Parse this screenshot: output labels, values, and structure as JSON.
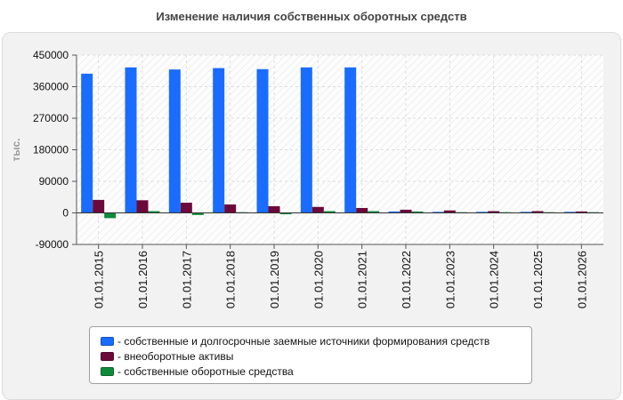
{
  "chart_data": {
    "type": "bar",
    "title": "Изменение наличия собственных оборотных средств",
    "ylabel": "тыс.",
    "xlabel": "",
    "ylim": [
      -90000,
      450000
    ],
    "yticks": [
      -90000,
      0,
      90000,
      180000,
      270000,
      360000,
      450000
    ],
    "grid": true,
    "legend_position": "bottom",
    "categories": [
      "01.01.2015",
      "01.01.2016",
      "01.01.2017",
      "01.01.2018",
      "01.01.2019",
      "01.01.2020",
      "01.01.2021",
      "01.01.2022",
      "01.01.2023",
      "01.01.2024",
      "01.01.2025",
      "01.01.2026"
    ],
    "series": [
      {
        "name": "- собственные и долгосрочные заемные источники формирования средств",
        "color": "#1a6cff",
        "values": [
          397000,
          415000,
          409000,
          413000,
          410000,
          415000,
          415000,
          4000,
          3000,
          3000,
          3000,
          3000
        ]
      },
      {
        "name": "- внеоборотные активы",
        "color": "#6b0a3a",
        "values": [
          37000,
          36000,
          29000,
          24000,
          19000,
          17000,
          14000,
          9000,
          7000,
          5000,
          5000,
          4000
        ]
      },
      {
        "name": "- собственные оборотные средства",
        "color": "#0e8a3a",
        "values": [
          -15000,
          5000,
          -6000,
          2000,
          -4000,
          5000,
          5000,
          4000,
          2000,
          2000,
          2000,
          2000
        ]
      }
    ]
  }
}
